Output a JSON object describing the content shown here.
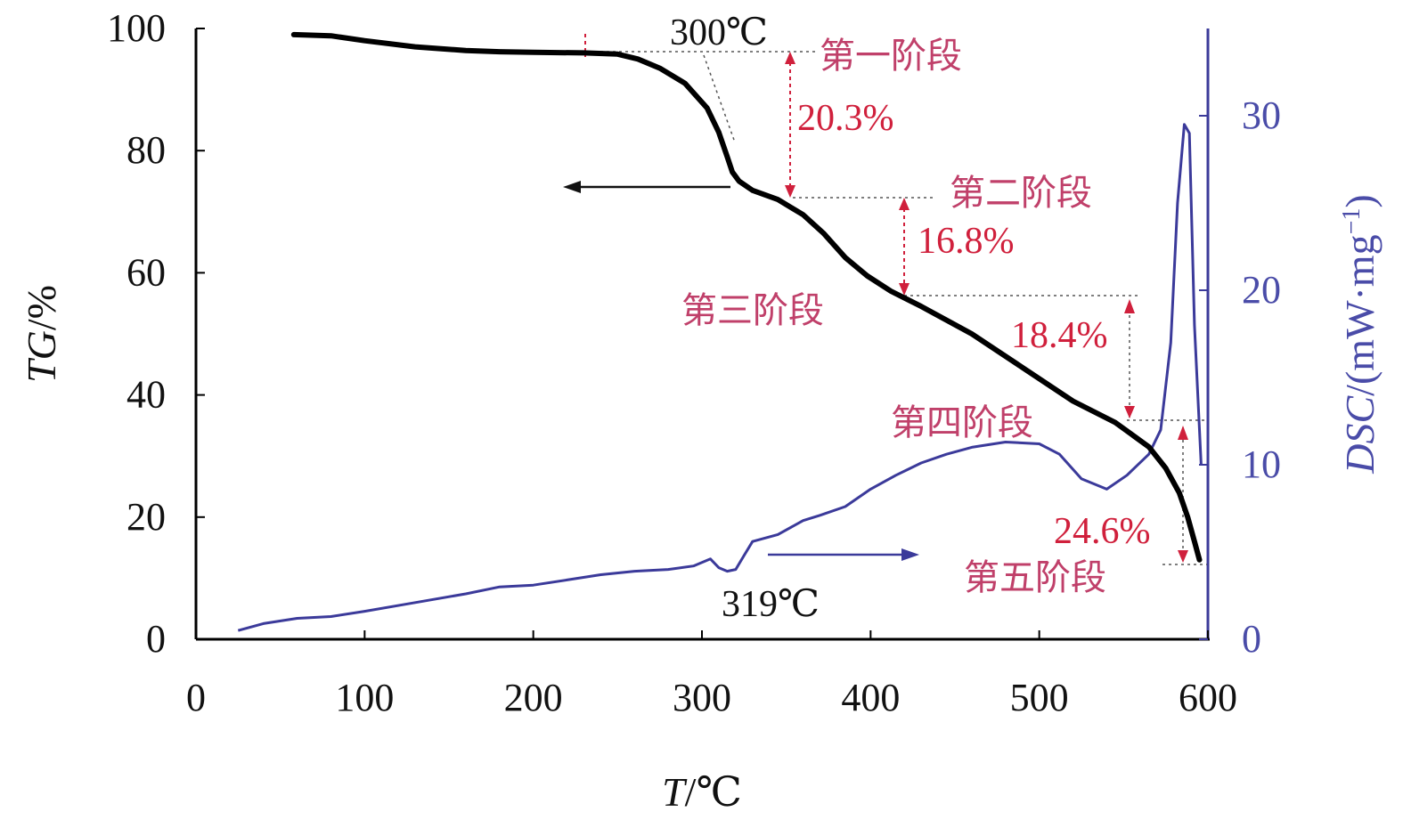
{
  "chart_data": {
    "type": "line",
    "xlabel_var": "T",
    "xlabel_unit": "/℃",
    "ylabel_left_var": "TG",
    "ylabel_left_unit": "/%",
    "ylabel_right_var": "DSC",
    "ylabel_right_unit": "/(mW·mg",
    "ylabel_right_sup": "−1",
    "ylabel_right_close": ")",
    "xlim": [
      0,
      600
    ],
    "ylim_left": [
      0,
      100
    ],
    "ylim_right": [
      0,
      35
    ],
    "x_ticks": [
      "0",
      "100",
      "200",
      "300",
      "400",
      "500",
      "600"
    ],
    "y_left_ticks": [
      "0",
      "20",
      "40",
      "60",
      "80",
      "100"
    ],
    "y_right_ticks": [
      "0",
      "10",
      "20",
      "30"
    ],
    "colors": {
      "tg": "#000000",
      "dsc": "#3b3a9a",
      "annotation": "#c0406a",
      "arrow": "#d0203c"
    },
    "series": [
      {
        "axis": "left",
        "x": [
          58,
          80,
          100,
          130,
          160,
          180,
          200,
          230,
          250,
          262,
          275,
          290,
          303,
          310,
          315,
          318,
          322,
          330,
          345,
          360,
          372,
          385,
          398,
          412,
          430,
          460,
          490,
          520,
          545,
          565,
          575,
          583,
          588,
          592,
          595
        ],
        "y": [
          99,
          98.8,
          98,
          97,
          96.4,
          96.2,
          96.1,
          96,
          95.8,
          95,
          93.5,
          91,
          87,
          83,
          79,
          76.5,
          75,
          73.5,
          72,
          69.5,
          66.5,
          62.5,
          59.5,
          57,
          54.5,
          50,
          44.5,
          39,
          35.5,
          31.5,
          28,
          24,
          20,
          16,
          13
        ]
      },
      {
        "axis": "right",
        "x": [
          25,
          40,
          60,
          80,
          100,
          130,
          160,
          180,
          200,
          220,
          240,
          260,
          280,
          295,
          305,
          310,
          315,
          320,
          325,
          330,
          345,
          360,
          370,
          385,
          400,
          415,
          430,
          445,
          460,
          480,
          500,
          512,
          525,
          540,
          552,
          565,
          572,
          578,
          582,
          586,
          589,
          592,
          596
        ],
        "y": [
          0.5,
          0.9,
          1.2,
          1.3,
          1.6,
          2.1,
          2.6,
          3.0,
          3.1,
          3.4,
          3.7,
          3.9,
          4.0,
          4.2,
          4.6,
          4.1,
          3.9,
          4.0,
          4.8,
          5.6,
          6.0,
          6.8,
          7.1,
          7.6,
          8.6,
          9.4,
          10.1,
          10.6,
          11.0,
          11.3,
          11.2,
          10.6,
          9.2,
          8.6,
          9.4,
          10.6,
          12.0,
          17.0,
          25.0,
          29.5,
          29.0,
          18.0,
          10.0
        ]
      }
    ],
    "annotations": {
      "temp_300": "300℃",
      "temp_319": "319℃",
      "stage1": "第一阶段",
      "stage2": "第二阶段",
      "stage3": "第三阶段",
      "stage4": "第四阶段",
      "stage5": "第五阶段",
      "pct1": "20.3%",
      "pct2": "16.8%",
      "pct3": "18.4%",
      "pct4": "24.6%"
    }
  }
}
